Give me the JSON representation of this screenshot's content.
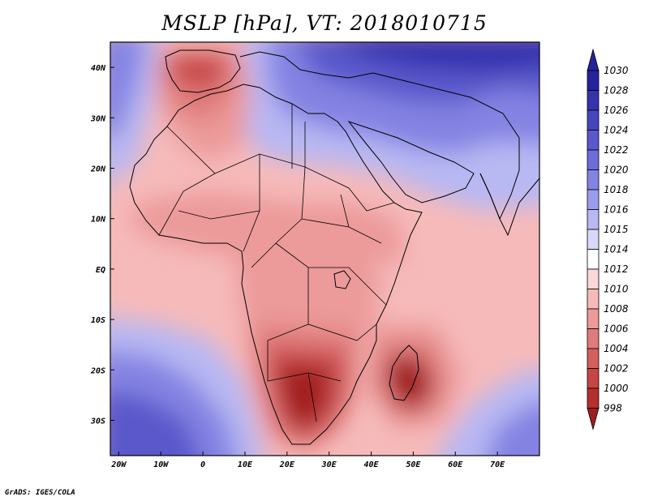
{
  "title": "MSLP [hPa], VT: 2018010715",
  "credit": "GrADS: IGES/COLA",
  "x_axis": {
    "labels": [
      "20W",
      "10W",
      "0",
      "10E",
      "20E",
      "30E",
      "40E",
      "50E",
      "60E",
      "70E"
    ],
    "lons": [
      -20,
      -10,
      0,
      10,
      20,
      30,
      40,
      50,
      60,
      70
    ],
    "lon_range": [
      -22,
      80
    ]
  },
  "y_axis": {
    "labels": [
      "40N",
      "30N",
      "20N",
      "10N",
      "EQ",
      "10S",
      "20S",
      "30S"
    ],
    "lats": [
      40,
      30,
      20,
      10,
      0,
      -10,
      -20,
      -30
    ],
    "lat_range": [
      -37,
      45
    ]
  },
  "colorbar": {
    "levels": [
      "1030",
      "1028",
      "1026",
      "1024",
      "1022",
      "1020",
      "1018",
      "1016",
      "1015",
      "1014",
      "1012",
      "1010",
      "1008",
      "1006",
      "1004",
      "1002",
      "1000",
      "998"
    ],
    "colors": [
      "#26229b",
      "#3633ad",
      "#4745bd",
      "#5a58cb",
      "#6d6cd8",
      "#8483e3",
      "#9c9cec",
      "#b8b8f3",
      "#d8d8f9",
      "#ffffff",
      "#fbd8d8",
      "#f6baba",
      "#ec9a9a",
      "#e07b7b",
      "#d45f5f",
      "#c74545",
      "#b52f2f",
      "#a01d1d"
    ]
  },
  "colors": {
    "background": "#f6baba",
    "frame": "#000000",
    "coast": "#000000"
  }
}
